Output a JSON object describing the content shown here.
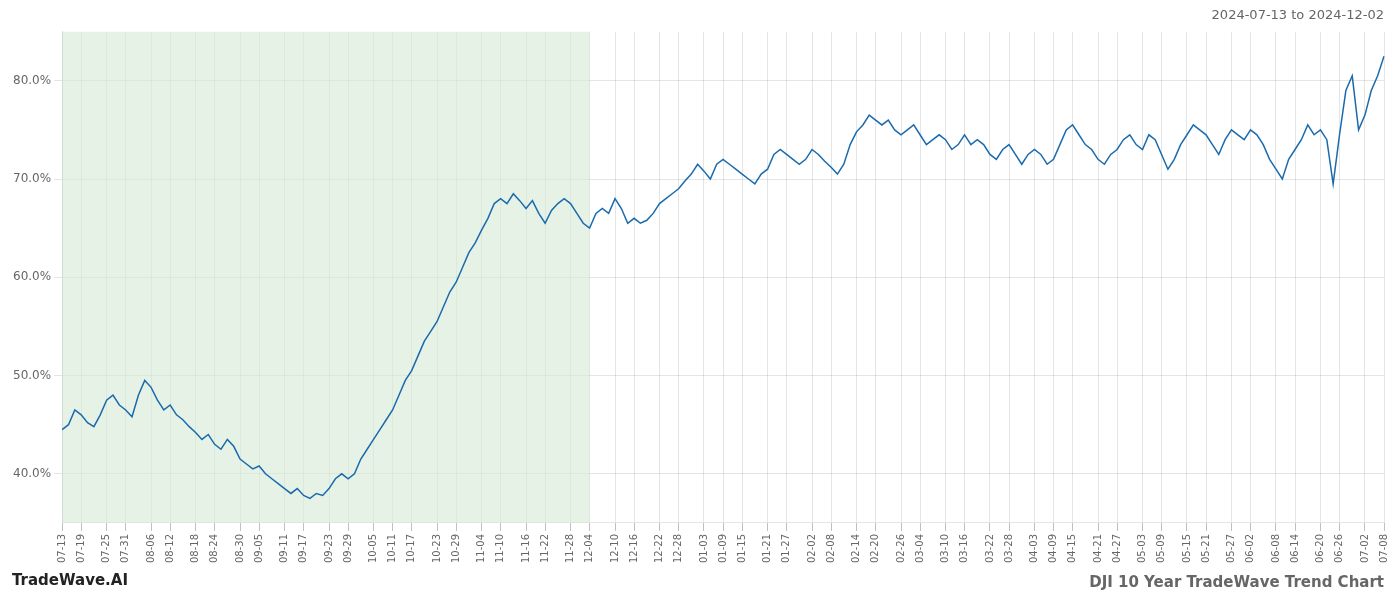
{
  "chart_data": {
    "type": "line",
    "title": "DJI 10 Year TradeWave Trend Chart",
    "subtitle": "2024-07-13 to 2024-12-02",
    "annotations": [
      "TradeWave.AI"
    ],
    "color": "#1a6bad",
    "grid": true,
    "shaded_span": {
      "from": "07-13",
      "to": "12-04",
      "color": "#d4ead4"
    },
    "ylim": [
      35.0,
      85.0
    ],
    "yticks": [
      {
        "value": 40.0,
        "label": "40.0%"
      },
      {
        "value": 50.0,
        "label": "50.0%"
      },
      {
        "value": 60.0,
        "label": "60.0%"
      },
      {
        "value": 70.0,
        "label": "70.0%"
      },
      {
        "value": 80.0,
        "label": "80.0%"
      }
    ],
    "categories": [
      "07-13",
      null,
      null,
      "07-19",
      null,
      null,
      null,
      "07-25",
      null,
      null,
      "07-31",
      null,
      null,
      null,
      "08-06",
      null,
      null,
      "08-12",
      null,
      null,
      null,
      "08-18",
      null,
      null,
      "08-24",
      null,
      null,
      null,
      "08-30",
      null,
      null,
      "09-05",
      null,
      null,
      null,
      "09-11",
      null,
      null,
      "09-17",
      null,
      null,
      null,
      "09-23",
      null,
      null,
      "09-29",
      null,
      null,
      null,
      "10-05",
      null,
      null,
      "10-11",
      null,
      null,
      "10-17",
      null,
      null,
      null,
      "10-23",
      null,
      null,
      "10-29",
      null,
      null,
      null,
      "11-04",
      null,
      null,
      "11-10",
      null,
      null,
      null,
      "11-16",
      null,
      null,
      "11-22",
      null,
      null,
      null,
      "11-28",
      null,
      null,
      "12-04",
      null,
      null,
      null,
      "12-10",
      null,
      null,
      "12-16",
      null,
      null,
      null,
      "12-22",
      null,
      null,
      "12-28",
      null,
      null,
      null,
      "01-03",
      null,
      null,
      "01-09",
      null,
      null,
      "01-15",
      null,
      null,
      null,
      "01-21",
      null,
      null,
      "01-27",
      null,
      null,
      null,
      "02-02",
      null,
      null,
      "02-08",
      null,
      null,
      null,
      "02-14",
      null,
      null,
      "02-20",
      null,
      null,
      null,
      "02-26",
      null,
      null,
      "03-04",
      null,
      null,
      null,
      "03-10",
      null,
      null,
      "03-16",
      null,
      null,
      null,
      "03-22",
      null,
      null,
      "03-28",
      null,
      null,
      null,
      "04-03",
      null,
      null,
      "04-09",
      null,
      null,
      "04-15",
      null,
      null,
      null,
      "04-21",
      null,
      null,
      "04-27",
      null,
      null,
      null,
      "05-03",
      null,
      null,
      "05-09",
      null,
      null,
      null,
      "05-15",
      null,
      null,
      "05-21",
      null,
      null,
      null,
      "05-27",
      null,
      null,
      "06-02",
      null,
      null,
      null,
      "06-08",
      null,
      null,
      "06-14",
      null,
      null,
      null,
      "06-20",
      null,
      null,
      "06-26",
      null,
      null,
      null,
      "07-02",
      null,
      null,
      "07-08"
    ],
    "values": [
      44.5,
      45.0,
      46.5,
      46.0,
      45.2,
      44.8,
      46.0,
      47.5,
      48.0,
      47.0,
      46.5,
      45.8,
      48.0,
      49.5,
      48.8,
      47.5,
      46.5,
      47.0,
      46.0,
      45.5,
      44.8,
      44.2,
      43.5,
      44.0,
      43.0,
      42.5,
      43.5,
      42.8,
      41.5,
      41.0,
      40.5,
      40.8,
      40.0,
      39.5,
      39.0,
      38.5,
      38.0,
      38.5,
      37.8,
      37.5,
      38.0,
      37.8,
      38.5,
      39.5,
      40.0,
      39.5,
      40.0,
      41.5,
      42.5,
      43.5,
      44.5,
      45.5,
      46.5,
      48.0,
      49.5,
      50.5,
      52.0,
      53.5,
      54.5,
      55.5,
      57.0,
      58.5,
      59.5,
      61.0,
      62.5,
      63.5,
      64.8,
      66.0,
      67.5,
      68.0,
      67.5,
      68.5,
      67.8,
      67.0,
      67.8,
      66.5,
      65.5,
      66.8,
      67.5,
      68.0,
      67.5,
      66.5,
      65.5,
      65.0,
      66.5,
      67.0,
      66.5,
      68.0,
      67.0,
      65.5,
      66.0,
      65.5,
      65.8,
      66.5,
      67.5,
      68.0,
      68.5,
      69.0,
      69.8,
      70.5,
      71.5,
      70.8,
      70.0,
      71.5,
      72.0,
      71.5,
      71.0,
      70.5,
      70.0,
      69.5,
      70.5,
      71.0,
      72.5,
      73.0,
      72.5,
      72.0,
      71.5,
      72.0,
      73.0,
      72.5,
      71.8,
      71.2,
      70.5,
      71.5,
      73.5,
      74.8,
      75.5,
      76.5,
      76.0,
      75.5,
      76.0,
      75.0,
      74.5,
      75.0,
      75.5,
      74.5,
      73.5,
      74.0,
      74.5,
      74.0,
      73.0,
      73.5,
      74.5,
      73.5,
      74.0,
      73.5,
      72.5,
      72.0,
      73.0,
      73.5,
      72.5,
      71.5,
      72.5,
      73.0,
      72.5,
      71.5,
      72.0,
      73.5,
      75.0,
      75.5,
      74.5,
      73.5,
      73.0,
      72.0,
      71.5,
      72.5,
      73.0,
      74.0,
      74.5,
      73.5,
      73.0,
      74.5,
      74.0,
      72.5,
      71.0,
      72.0,
      73.5,
      74.5,
      75.5,
      75.0,
      74.5,
      73.5,
      72.5,
      74.0,
      75.0,
      74.5,
      74.0,
      75.0,
      74.5,
      73.5,
      72.0,
      71.0,
      70.0,
      72.0,
      73.0,
      74.0,
      75.5,
      74.5,
      75.0,
      74.0,
      69.5,
      74.5,
      79.0,
      80.5,
      75.0,
      76.5,
      79.0,
      80.5,
      82.5
    ]
  }
}
